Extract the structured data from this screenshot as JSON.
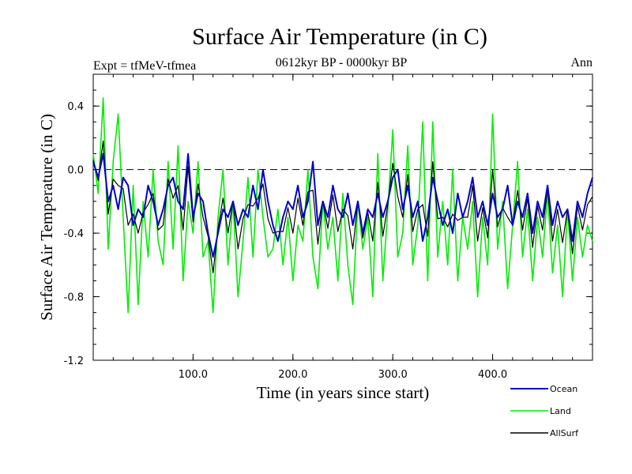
{
  "chart_data": {
    "type": "line",
    "title": "Surface Air Temperature (in C)",
    "left_header": "Expt = tfMeV-tfmea",
    "center_header": "0612kyr BP - 0000kyr BP",
    "right_header": "Ann",
    "xlabel": "Time (in years since start)",
    "ylabel": "Surface Air Temperature (in C)",
    "xlim": [
      0,
      500
    ],
    "ylim": [
      -1.2,
      0.6
    ],
    "xticks": [
      100,
      200,
      300,
      400
    ],
    "xtick_labels": [
      "100.0",
      "200.0",
      "300.0",
      "400.0"
    ],
    "yticks": [
      0.4,
      0.0,
      -0.4,
      -0.8,
      -1.2
    ],
    "ytick_labels": [
      "0.4",
      "0.0",
      "-0.4",
      "-0.8",
      "-1.2"
    ],
    "reference_line": 0.0,
    "legend": {
      "placement": "bottom-right-outside"
    },
    "series": [
      {
        "name": "Ocean",
        "color": "#0000cc",
        "x": [
          0,
          5,
          10,
          15,
          20,
          25,
          30,
          35,
          40,
          45,
          50,
          55,
          60,
          65,
          70,
          75,
          80,
          85,
          90,
          95,
          100,
          105,
          110,
          115,
          120,
          125,
          130,
          135,
          140,
          145,
          150,
          155,
          160,
          165,
          170,
          175,
          180,
          185,
          190,
          195,
          200,
          205,
          210,
          215,
          220,
          225,
          230,
          235,
          240,
          245,
          250,
          255,
          260,
          265,
          270,
          275,
          280,
          285,
          290,
          295,
          300,
          305,
          310,
          315,
          320,
          325,
          330,
          335,
          340,
          345,
          350,
          355,
          360,
          365,
          370,
          375,
          380,
          385,
          390,
          395,
          400,
          405,
          410,
          415,
          420,
          425,
          430,
          435,
          440,
          445,
          450,
          455,
          460,
          465,
          470,
          475,
          480,
          485,
          490,
          495,
          500
        ],
        "values": [
          0.05,
          -0.05,
          0.1,
          -0.2,
          -0.1,
          -0.25,
          -0.05,
          -0.1,
          -0.35,
          -0.25,
          -0.3,
          -0.1,
          -0.2,
          -0.35,
          -0.25,
          -0.1,
          -0.05,
          -0.2,
          -0.25,
          0.1,
          -0.3,
          -0.15,
          -0.2,
          -0.4,
          -0.55,
          -0.4,
          -0.25,
          -0.3,
          -0.2,
          -0.35,
          -0.25,
          -0.3,
          -0.1,
          -0.25,
          0.0,
          -0.2,
          -0.35,
          -0.45,
          -0.3,
          -0.2,
          -0.25,
          -0.1,
          -0.3,
          -0.2,
          0.05,
          -0.35,
          -0.2,
          -0.3,
          -0.1,
          -0.25,
          -0.3,
          -0.15,
          -0.35,
          -0.2,
          -0.4,
          -0.25,
          -0.3,
          -0.15,
          -0.3,
          -0.2,
          -0.05,
          0.0,
          -0.25,
          -0.1,
          -0.3,
          -0.2,
          -0.45,
          -0.3,
          -0.05,
          -0.2,
          -0.35,
          -0.25,
          -0.4,
          -0.15,
          -0.3,
          -0.2,
          -0.05,
          -0.3,
          -0.2,
          -0.35,
          -0.15,
          -0.3,
          -0.25,
          -0.1,
          -0.35,
          -0.2,
          -0.3,
          -0.15,
          -0.4,
          -0.2,
          -0.3,
          -0.1,
          -0.35,
          -0.2,
          -0.3,
          -0.25,
          -0.45,
          -0.2,
          -0.3,
          -0.15,
          -0.05
        ]
      },
      {
        "name": "Land",
        "color": "#00ee00",
        "x": [
          0,
          5,
          10,
          15,
          20,
          25,
          30,
          35,
          40,
          45,
          50,
          55,
          60,
          65,
          70,
          75,
          80,
          85,
          90,
          95,
          100,
          105,
          110,
          115,
          120,
          125,
          130,
          135,
          140,
          145,
          150,
          155,
          160,
          165,
          170,
          175,
          180,
          185,
          190,
          195,
          200,
          205,
          210,
          215,
          220,
          225,
          230,
          235,
          240,
          245,
          250,
          255,
          260,
          265,
          270,
          275,
          280,
          285,
          290,
          295,
          300,
          305,
          310,
          315,
          320,
          325,
          330,
          335,
          340,
          345,
          350,
          355,
          360,
          365,
          370,
          375,
          380,
          385,
          390,
          395,
          400,
          405,
          410,
          415,
          420,
          425,
          430,
          435,
          440,
          445,
          450,
          455,
          460,
          465,
          470,
          475,
          480,
          485,
          490,
          495,
          500
        ],
        "values": [
          0.1,
          -0.15,
          0.45,
          -0.5,
          0.05,
          0.35,
          -0.3,
          -0.9,
          -0.1,
          -0.85,
          -0.2,
          -0.55,
          0.0,
          -0.45,
          -0.6,
          0.05,
          -0.5,
          0.15,
          -0.7,
          -0.2,
          -0.4,
          0.05,
          -0.55,
          -0.45,
          -0.9,
          -0.3,
          0.0,
          -0.6,
          -0.2,
          -0.8,
          -0.45,
          -0.05,
          -0.55,
          0.0,
          -0.3,
          -0.55,
          -0.5,
          -0.25,
          -0.6,
          -0.3,
          -0.7,
          -0.35,
          -0.45,
          0.0,
          -0.55,
          -0.75,
          -0.2,
          -0.5,
          -0.3,
          -0.7,
          -0.15,
          -0.6,
          -0.85,
          -0.2,
          -0.5,
          -0.3,
          -0.8,
          0.1,
          -0.7,
          -0.25,
          0.25,
          -0.55,
          -0.4,
          0.15,
          -0.6,
          -0.35,
          0.3,
          -0.7,
          0.3,
          -0.55,
          -0.2,
          -0.6,
          0.0,
          -0.7,
          -0.3,
          -0.5,
          -0.2,
          -0.8,
          -0.3,
          -0.6,
          0.35,
          -0.5,
          -0.2,
          -0.75,
          -0.35,
          0.05,
          -0.55,
          -0.25,
          -0.7,
          -0.3,
          -0.55,
          -0.15,
          -0.65,
          -0.35,
          -0.8,
          -0.25,
          -0.7,
          -0.3,
          -0.55,
          -0.35,
          -0.45
        ]
      },
      {
        "name": "AllSurf",
        "color": "#000000",
        "x": [
          0,
          5,
          10,
          15,
          20,
          25,
          30,
          35,
          40,
          45,
          50,
          55,
          60,
          65,
          70,
          75,
          80,
          85,
          90,
          95,
          100,
          105,
          110,
          115,
          120,
          125,
          130,
          135,
          140,
          145,
          150,
          155,
          160,
          165,
          170,
          175,
          180,
          185,
          190,
          195,
          200,
          205,
          210,
          215,
          220,
          225,
          230,
          235,
          240,
          245,
          250,
          255,
          260,
          265,
          270,
          275,
          280,
          285,
          290,
          295,
          300,
          305,
          310,
          315,
          320,
          325,
          330,
          335,
          340,
          345,
          350,
          355,
          360,
          365,
          370,
          375,
          380,
          385,
          390,
          395,
          400,
          405,
          410,
          415,
          420,
          425,
          430,
          435,
          440,
          445,
          450,
          455,
          460,
          465,
          470,
          475,
          480,
          485,
          490,
          495,
          500
        ],
        "values": [
          0.06,
          -0.07,
          0.18,
          -0.28,
          -0.06,
          -0.1,
          -0.12,
          -0.35,
          -0.28,
          -0.4,
          -0.27,
          -0.22,
          -0.15,
          -0.38,
          -0.35,
          -0.06,
          -0.18,
          -0.1,
          -0.38,
          0.02,
          -0.33,
          -0.09,
          -0.3,
          -0.42,
          -0.65,
          -0.37,
          -0.18,
          -0.4,
          -0.2,
          -0.5,
          -0.31,
          -0.22,
          -0.23,
          -0.18,
          -0.09,
          -0.31,
          -0.4,
          -0.39,
          -0.39,
          -0.24,
          -0.4,
          -0.18,
          -0.35,
          -0.14,
          -0.13,
          -0.47,
          -0.2,
          -0.37,
          -0.16,
          -0.39,
          -0.25,
          -0.29,
          -0.5,
          -0.2,
          -0.43,
          -0.27,
          -0.45,
          -0.08,
          -0.42,
          -0.22,
          0.04,
          -0.17,
          -0.3,
          -0.03,
          -0.39,
          -0.25,
          -0.22,
          -0.42,
          0.05,
          -0.31,
          -0.3,
          -0.36,
          -0.28,
          -0.32,
          -0.3,
          -0.3,
          -0.1,
          -0.45,
          -0.24,
          -0.43,
          0.0,
          -0.36,
          -0.24,
          -0.3,
          -0.35,
          -0.13,
          -0.38,
          -0.18,
          -0.49,
          -0.23,
          -0.38,
          -0.12,
          -0.45,
          -0.25,
          -0.46,
          -0.25,
          -0.53,
          -0.23,
          -0.38,
          -0.22,
          -0.17
        ]
      }
    ]
  }
}
